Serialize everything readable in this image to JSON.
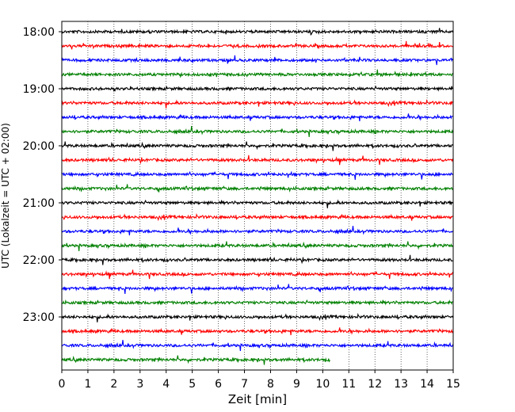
{
  "chart_data": {
    "type": "line",
    "title": "",
    "xlabel": "Zeit  [min]",
    "ylabel": "UTC (Lokalzeit = UTC + 02:00)",
    "xlim": [
      0,
      15
    ],
    "x_ticks": [
      0,
      1,
      2,
      3,
      4,
      5,
      6,
      7,
      8,
      9,
      10,
      11,
      12,
      13,
      14,
      15
    ],
    "x_tick_labels": [
      "0",
      "1",
      "2",
      "3",
      "4",
      "5",
      "6",
      "7",
      "8",
      "9",
      "10",
      "11",
      "12",
      "13",
      "14",
      "15"
    ],
    "y_ticks": [
      "18:00",
      "19:00",
      "20:00",
      "21:00",
      "22:00",
      "23:00"
    ],
    "trace_interval_min": 15,
    "grid": "vertical dotted",
    "colors": [
      "#000000",
      "#ff0000",
      "#0000ff",
      "#008000"
    ],
    "series": [
      {
        "start": "18:00",
        "duration_min": 15
      },
      {
        "start": "18:15",
        "duration_min": 15
      },
      {
        "start": "18:30",
        "duration_min": 15
      },
      {
        "start": "18:45",
        "duration_min": 15
      },
      {
        "start": "19:00",
        "duration_min": 15
      },
      {
        "start": "19:15",
        "duration_min": 15
      },
      {
        "start": "19:30",
        "duration_min": 15
      },
      {
        "start": "19:45",
        "duration_min": 15
      },
      {
        "start": "20:00",
        "duration_min": 15
      },
      {
        "start": "20:15",
        "duration_min": 15
      },
      {
        "start": "20:30",
        "duration_min": 15
      },
      {
        "start": "20:45",
        "duration_min": 15
      },
      {
        "start": "21:00",
        "duration_min": 15
      },
      {
        "start": "21:15",
        "duration_min": 15
      },
      {
        "start": "21:30",
        "duration_min": 15
      },
      {
        "start": "21:45",
        "duration_min": 15
      },
      {
        "start": "22:00",
        "duration_min": 15
      },
      {
        "start": "22:15",
        "duration_min": 15
      },
      {
        "start": "22:30",
        "duration_min": 15
      },
      {
        "start": "22:45",
        "duration_min": 15
      },
      {
        "start": "23:00",
        "duration_min": 15
      },
      {
        "start": "23:15",
        "duration_min": 15
      },
      {
        "start": "23:30",
        "duration_min": 15
      },
      {
        "start": "23:45",
        "duration_min": 10.3
      }
    ]
  }
}
